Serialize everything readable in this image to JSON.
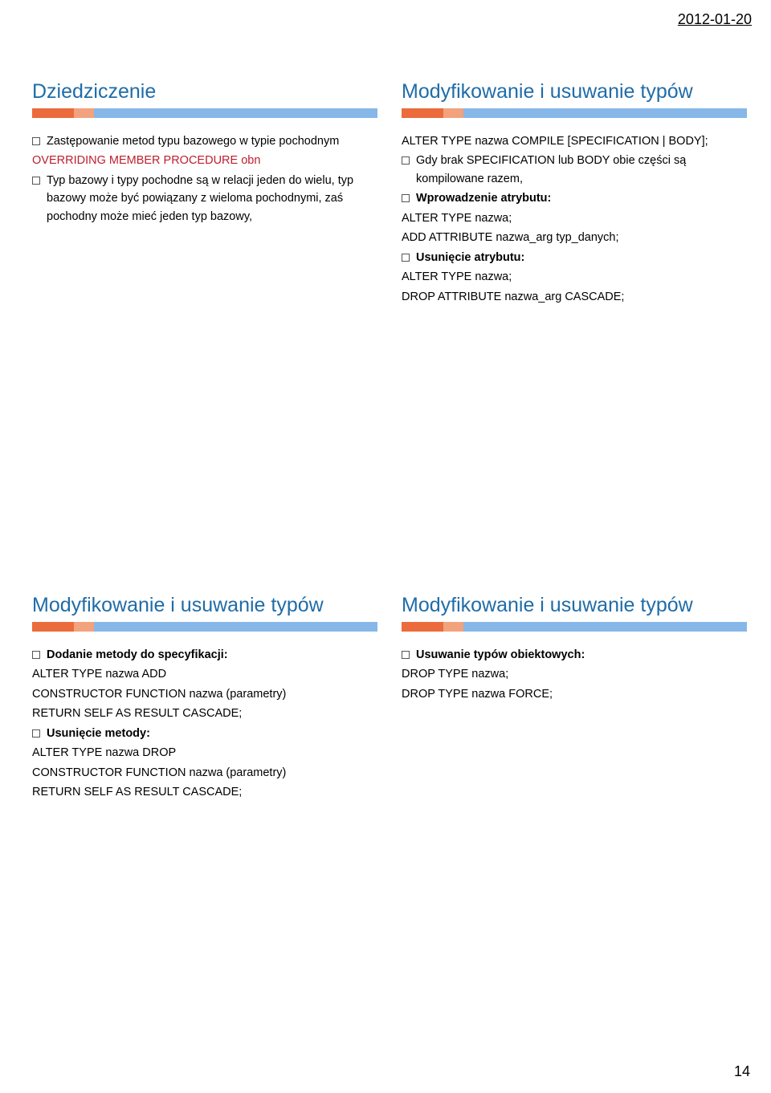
{
  "date": "2012-01-20",
  "pageNumber": "14",
  "colors": {
    "title": "#1f6ca8",
    "bar1": "#eb6b3c",
    "bar2": "#f2a27d",
    "bar3": "#86b7e8",
    "red": "#be1e2d",
    "text": "#000000",
    "background": "#ffffff"
  },
  "slides": [
    {
      "title": "Dziedziczenie",
      "titleColor": "#1f6ca8",
      "items": [
        {
          "bullet": true,
          "text": "Zastępowanie metod typu bazowego w typie pochodnym"
        },
        {
          "bullet": false,
          "red": true,
          "text": "OVERRIDING MEMBER PROCEDURE obn"
        },
        {
          "bullet": true,
          "text": "Typ bazowy i typy pochodne są w relacji jeden do wielu, typ bazowy może być powiązany z wieloma pochodnymi, zaś pochodny może mieć jeden typ bazowy,"
        }
      ]
    },
    {
      "title": "Modyfikowanie i usuwanie typów",
      "titleColor": "#1f6ca8",
      "items": [
        {
          "bullet": false,
          "text": "ALTER TYPE nazwa COMPILE [SPECIFICATION | BODY];"
        },
        {
          "bullet": true,
          "text": "Gdy brak SPECIFICATION lub BODY obie części są kompilowane razem,"
        },
        {
          "bullet": true,
          "bold": true,
          "text": "Wprowadzenie atrybutu:"
        },
        {
          "bullet": false,
          "text": "ALTER TYPE nazwa;"
        },
        {
          "bullet": false,
          "text": "ADD ATTRIBUTE nazwa_arg typ_danych;"
        },
        {
          "bullet": true,
          "bold": true,
          "text": "Usunięcie atrybutu:"
        },
        {
          "bullet": false,
          "text": "ALTER TYPE nazwa;"
        },
        {
          "bullet": false,
          "text": "DROP ATTRIBUTE nazwa_arg CASCADE;"
        }
      ]
    },
    {
      "title": "Modyfikowanie i usuwanie typów",
      "titleColor": "#1f6ca8",
      "items": [
        {
          "bullet": true,
          "bold": true,
          "text": "Dodanie metody do specyfikacji:"
        },
        {
          "bullet": false,
          "text": "ALTER TYPE nazwa ADD"
        },
        {
          "bullet": false,
          "text": "CONSTRUCTOR FUNCTION nazwa (parametry)"
        },
        {
          "bullet": false,
          "text": "RETURN SELF AS RESULT CASCADE;"
        },
        {
          "bullet": true,
          "bold": true,
          "text": "Usunięcie metody:"
        },
        {
          "bullet": false,
          "text": "ALTER TYPE nazwa DROP"
        },
        {
          "bullet": false,
          "text": "CONSTRUCTOR FUNCTION nazwa (parametry)"
        },
        {
          "bullet": false,
          "text": "RETURN SELF AS RESULT CASCADE;"
        }
      ]
    },
    {
      "title": "Modyfikowanie i usuwanie typów",
      "titleColor": "#1f6ca8",
      "items": [
        {
          "bullet": true,
          "bold": true,
          "text": "Usuwanie typów obiektowych:"
        },
        {
          "bullet": false,
          "text": "DROP TYPE nazwa;"
        },
        {
          "bullet": false,
          "text": "DROP TYPE nazwa FORCE;"
        }
      ]
    }
  ]
}
